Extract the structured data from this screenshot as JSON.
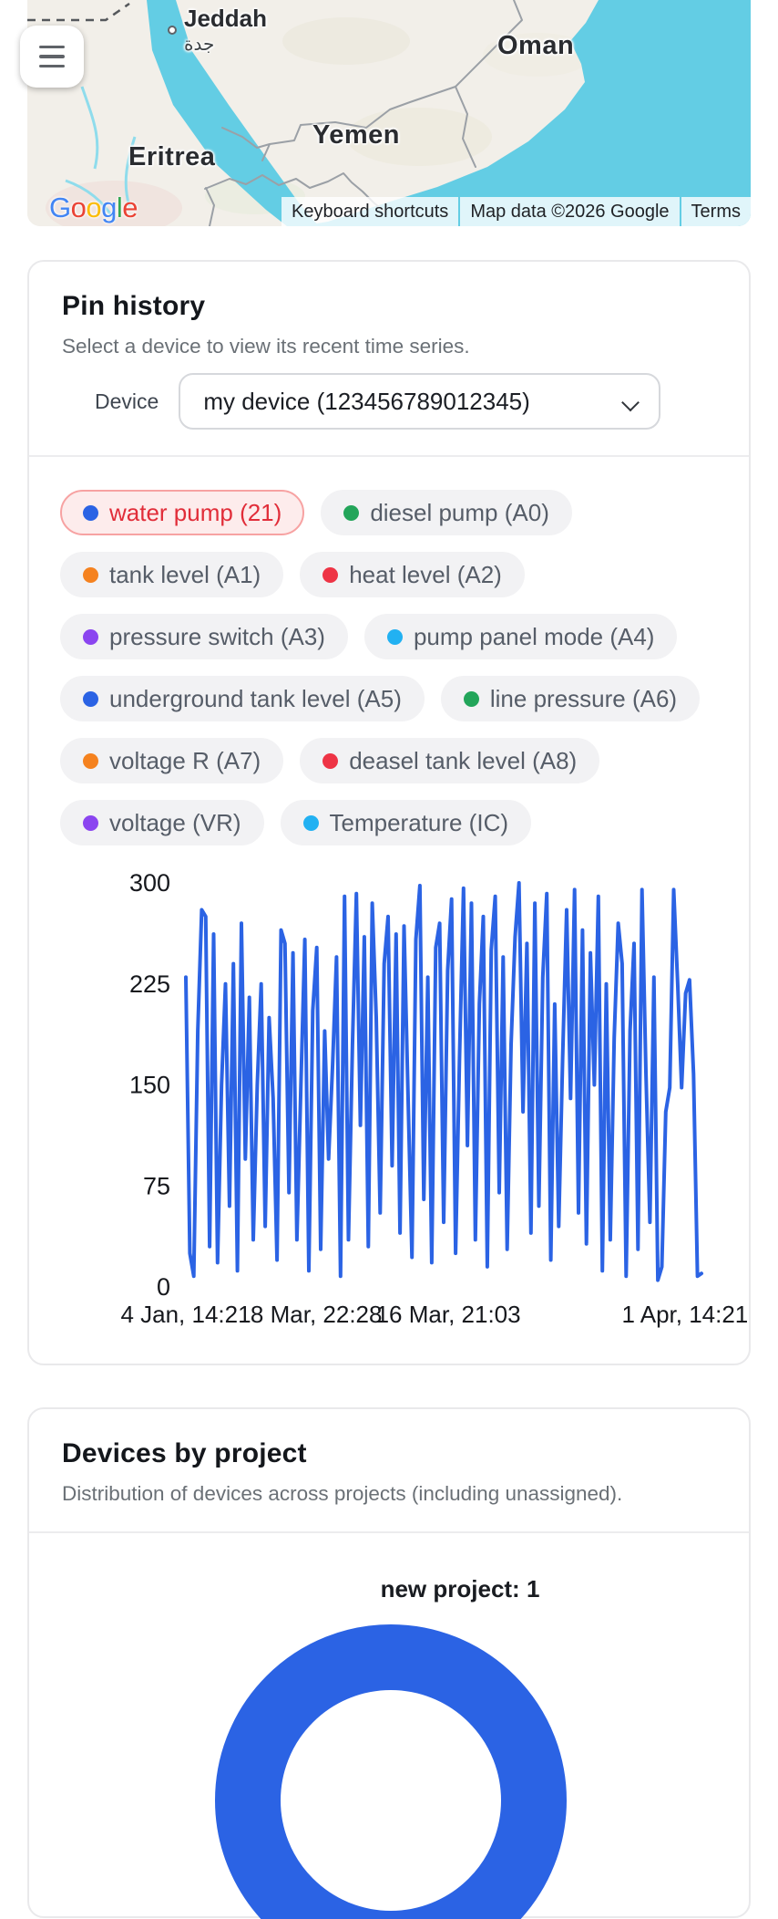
{
  "map": {
    "city_label": "Jeddah",
    "city_label_ar": "جدة",
    "labels": {
      "oman": "Oman",
      "yemen": "Yemen",
      "eritrea": "Eritrea"
    },
    "logo_letters": [
      {
        "ch": "G",
        "color": "#4285F4"
      },
      {
        "ch": "o",
        "color": "#EA4335"
      },
      {
        "ch": "o",
        "color": "#FBBC05"
      },
      {
        "ch": "g",
        "color": "#4285F4"
      },
      {
        "ch": "l",
        "color": "#34A853"
      },
      {
        "ch": "e",
        "color": "#EA4335"
      }
    ],
    "attribution": {
      "keyboard_shortcuts": "Keyboard shortcuts",
      "map_data": "Map data ©2026 Google",
      "terms": "Terms"
    },
    "colors": {
      "sea": "#63cde4",
      "land": "#f2efe9"
    }
  },
  "pin_history": {
    "title": "Pin history",
    "subtitle": "Select a device to view its recent time series.",
    "device_label": "Device",
    "device_value": "my device (123456789012345)",
    "pins": [
      {
        "label": "water pump (21)",
        "color": "#2b63e4",
        "selected": true
      },
      {
        "label": "diesel pump (A0)",
        "color": "#23a55a",
        "selected": false
      },
      {
        "label": "tank level (A1)",
        "color": "#f5821f",
        "selected": false
      },
      {
        "label": "heat level (A2)",
        "color": "#ee3445",
        "selected": false
      },
      {
        "label": "pressure switch (A3)",
        "color": "#8b45f0",
        "selected": false
      },
      {
        "label": "pump panel mode (A4)",
        "color": "#22b1f2",
        "selected": false
      },
      {
        "label": "underground tank level (A5)",
        "color": "#2b63e4",
        "selected": false
      },
      {
        "label": "line pressure (A6)",
        "color": "#23a55a",
        "selected": false
      },
      {
        "label": "voltage R (A7)",
        "color": "#f5821f",
        "selected": false
      },
      {
        "label": "deasel tank level (A8)",
        "color": "#ee3445",
        "selected": false
      },
      {
        "label": "voltage (VR)",
        "color": "#8b45f0",
        "selected": false
      },
      {
        "label": "Temperature (IC)",
        "color": "#22b1f2",
        "selected": false
      }
    ]
  },
  "devices_by_project": {
    "title": "Devices by project",
    "subtitle": "Distribution of devices across projects (including unassigned).",
    "donut_label": "new project: 1"
  },
  "chart_data": [
    {
      "type": "line",
      "title": "",
      "series_name": "water pump (21)",
      "color": "#2b63e4",
      "y_ticks": [
        0,
        75,
        150,
        225,
        300
      ],
      "y_max": 300,
      "x_ticks": [
        {
          "label": "4 Jan, 14:21",
          "pos": 0.0
        },
        {
          "label": "8 Mar, 22:28",
          "pos": 0.253
        },
        {
          "label": "16 Mar, 21:03",
          "pos": 0.509
        },
        {
          "label": "1 Apr, 14:21",
          "pos": 0.968
        }
      ],
      "grid": false,
      "values": [
        230,
        25,
        8,
        190,
        280,
        275,
        30,
        262,
        18,
        150,
        225,
        60,
        240,
        12,
        270,
        95,
        215,
        35,
        150,
        225,
        45,
        200,
        140,
        20,
        265,
        255,
        70,
        248,
        35,
        150,
        258,
        12,
        205,
        252,
        28,
        190,
        95,
        165,
        245,
        8,
        290,
        35,
        180,
        292,
        120,
        260,
        30,
        285,
        200,
        55,
        240,
        275,
        90,
        262,
        40,
        268,
        145,
        22,
        258,
        298,
        65,
        230,
        18,
        252,
        270,
        48,
        235,
        288,
        25,
        170,
        296,
        105,
        285,
        35,
        210,
        275,
        15,
        250,
        290,
        70,
        245,
        28,
        180,
        260,
        300,
        130,
        255,
        40,
        285,
        60,
        230,
        292,
        20,
        210,
        45,
        170,
        280,
        140,
        295,
        55,
        265,
        32,
        248,
        150,
        290,
        12,
        225,
        35,
        185,
        270,
        240,
        8,
        190,
        255,
        28,
        295,
        160,
        48,
        230,
        5,
        15,
        130,
        148,
        295,
        225,
        148,
        218,
        228,
        158,
        8,
        10
      ]
    },
    {
      "type": "pie",
      "title": "Devices by project",
      "segments": [
        {
          "label": "new project",
          "value": 1
        }
      ],
      "colors": [
        "#2b63e4"
      ],
      "legend_position": "none",
      "donut": true
    }
  ]
}
